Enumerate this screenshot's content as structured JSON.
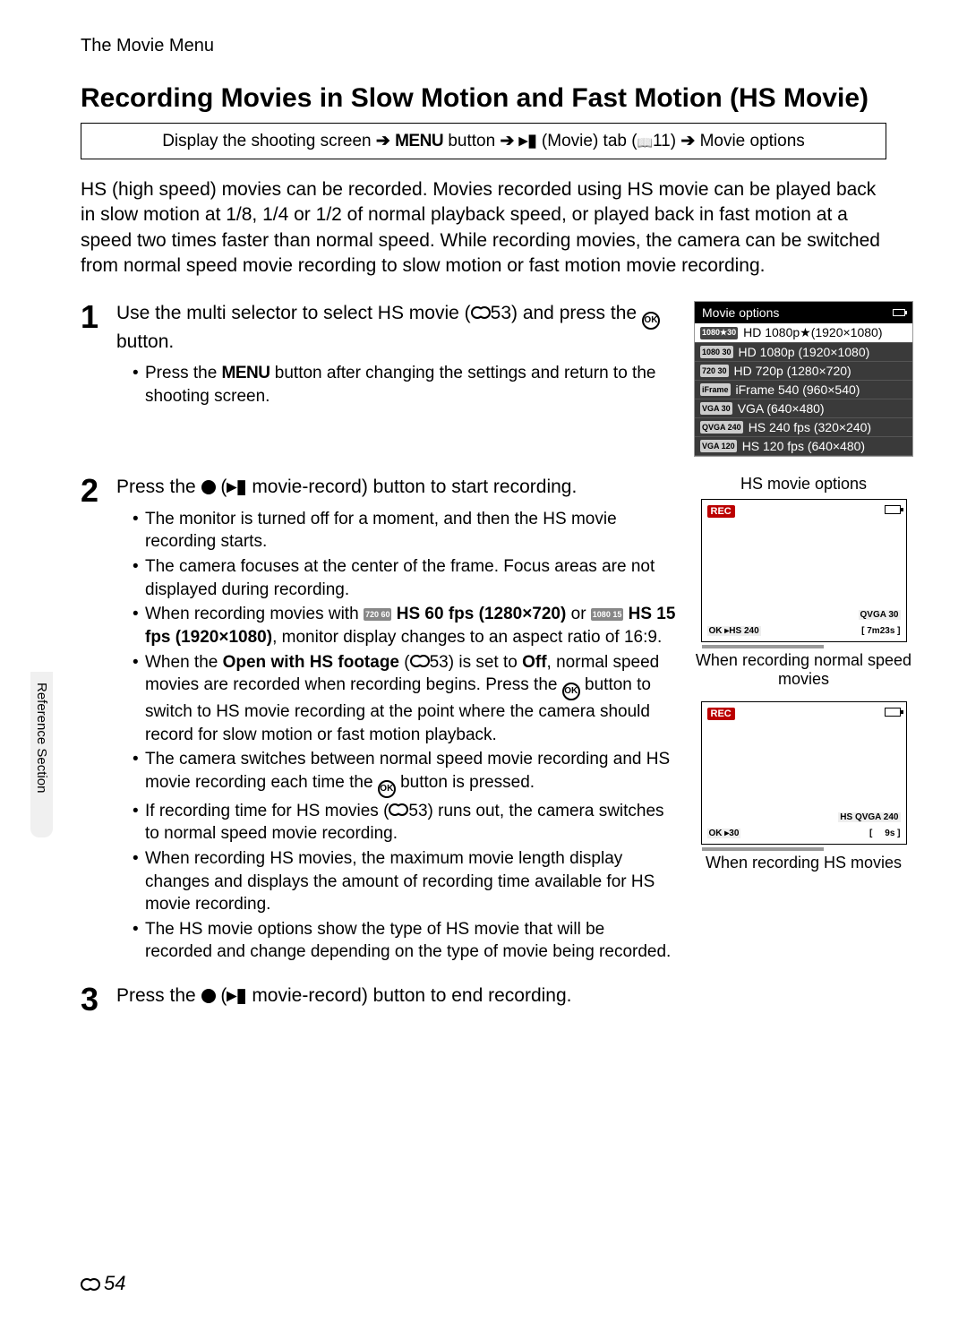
{
  "header": "The Movie Menu",
  "title": "Recording Movies in Slow Motion and Fast Motion (HS Movie)",
  "breadcrumb": {
    "p1": "Display the shooting screen",
    "p2_prefix": "",
    "p2_menu": "MENU",
    "p2_suffix": " button",
    "p3": " (Movie) tab (",
    "p3_ref": "11)",
    "p4": "Movie options"
  },
  "intro": "HS (high speed) movies can be recorded. Movies recorded using HS movie can be played back in slow motion at 1/8, 1/4 or 1/2 of normal playback speed, or played back in fast motion at a speed two times faster than normal speed. While recording movies, the camera can be switched from normal speed movie recording to slow motion or fast motion movie recording.",
  "step1": {
    "num": "1",
    "heading_a": "Use the multi selector to select HS movie (",
    "heading_ref": "53) and press the ",
    "heading_b": " button.",
    "bullet1_a": "Press the ",
    "bullet1_menu": "MENU",
    "bullet1_b": " button after changing the settings and return to the shooting screen."
  },
  "menu": {
    "title": "Movie options",
    "items": [
      {
        "icon": "1080★30",
        "label": "HD 1080p★(1920×1080)",
        "sel": true
      },
      {
        "icon": "1080 30",
        "label": "HD 1080p (1920×1080)",
        "sel": false
      },
      {
        "icon": "720 30",
        "label": "HD 720p (1280×720)",
        "sel": false
      },
      {
        "icon": "iFrame",
        "label": "iFrame 540 (960×540)",
        "sel": false
      },
      {
        "icon": "VGA 30",
        "label": "VGA (640×480)",
        "sel": false
      },
      {
        "icon": "QVGA 240",
        "label": "HS 240 fps (320×240)",
        "sel": false
      },
      {
        "icon": "VGA 120",
        "label": "HS 120 fps (640×480)",
        "sel": false
      }
    ]
  },
  "step2": {
    "num": "2",
    "heading_a": "Press the ",
    "heading_b": " (",
    "heading_c": " movie-record) button to start recording.",
    "bullets": [
      {
        "t": "The monitor is turned off for a moment, and then the HS movie recording starts."
      },
      {
        "t": "The camera focuses at the center of the frame. Focus areas are not displayed during recording."
      },
      {
        "t_a": "When recording movies with ",
        "icon1": "720 60",
        "bold1": " HS 60 fps (1280×720)",
        "mid": " or ",
        "icon2": "1080 15",
        "bold2": " HS 15 fps (1920×1080)",
        "t_b": ", monitor display changes to an aspect ratio of 16:9."
      },
      {
        "t_a": "When the ",
        "bold1": "Open with HS footage",
        "mid": " (",
        "ref": "53) is set to ",
        "bold2": "Off",
        "t_b": ", normal speed movies are recorded when recording begins. Press the ",
        "t_c": " button to switch to HS movie recording at the point where the camera should record for slow motion or fast motion playback."
      },
      {
        "t_a": "The camera switches between normal speed movie recording and HS movie recording each time the ",
        "t_b": " button is pressed."
      },
      {
        "t_a": "If recording time for HS movies (",
        "ref": "53) runs out, the camera switches to normal speed movie recording."
      },
      {
        "t": "When recording HS movies, the maximum movie length display changes and displays the amount of recording time available for HS movie recording."
      },
      {
        "t": "The HS movie options show the type of HS movie that will be recorded and change depending on the type of movie being recorded."
      }
    ],
    "side_title": "HS movie options",
    "lcd1": {
      "bl": "OK ▸HS 240",
      "mr": "QVGA 30",
      "br": "[ 7m23s ]"
    },
    "caption1": "When recording normal speed movies",
    "lcd2": {
      "bl": "OK ▸30",
      "mr": "HS QVGA 240",
      "br": "9s ]",
      "br_pre": "["
    },
    "caption2": "When recording HS movies"
  },
  "step3": {
    "num": "3",
    "heading_a": "Press the ",
    "heading_b": " (",
    "heading_c": " movie-record) button to end recording."
  },
  "side_label": "Reference Section",
  "page_num": "54"
}
